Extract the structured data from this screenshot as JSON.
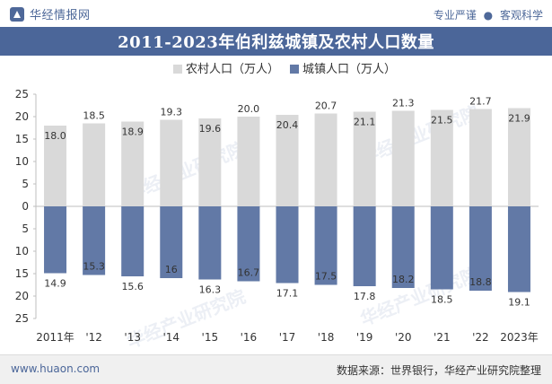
{
  "header": {
    "logo_text": "华经情报网",
    "slogan_left": "专业严谨",
    "slogan_dot": "●",
    "slogan_right": "客观科学"
  },
  "footer": {
    "website": "www.huaon.com",
    "source": "数据来源：世界银行，华经产业研究院整理"
  },
  "watermark": "华经产业研究院",
  "colors": {
    "rural": "#d9d9d9",
    "urban": "#6279a6",
    "title_bg": "#4b6699",
    "brand": "#4e6899"
  },
  "chart_data": {
    "type": "bar",
    "title": "2011-2023年伯利兹城镇及农村人口数量",
    "categories": [
      "2011年",
      "'12",
      "'13",
      "'14",
      "'15",
      "'16",
      "'17",
      "'18",
      "'19",
      "'20",
      "'21",
      "'22",
      "2023年"
    ],
    "series": [
      {
        "name": "农村人口（万人）",
        "direction": "up",
        "values": [
          18.0,
          18.5,
          18.9,
          19.3,
          19.6,
          20.0,
          20.4,
          20.7,
          21.1,
          21.3,
          21.5,
          21.7,
          21.9
        ],
        "labels": [
          "18.0",
          "18.5",
          "18.9",
          "19.3",
          "19.6",
          "20.0",
          "20.4",
          "20.7",
          "21.1",
          "21.3",
          "21.5",
          "21.7",
          "21.9"
        ]
      },
      {
        "name": "城镇人口（万人）",
        "direction": "down",
        "values": [
          14.9,
          15.3,
          15.6,
          16.0,
          16.3,
          16.7,
          17.1,
          17.5,
          17.8,
          18.2,
          18.5,
          18.8,
          19.1
        ],
        "labels": [
          "14.9",
          "15.3",
          "15.6",
          "16",
          "16.3",
          "16.7",
          "17.1",
          "17.5",
          "17.8",
          "18.2",
          "18.5",
          "18.8",
          "19.1"
        ]
      }
    ],
    "y_ticks": [
      "25",
      "20",
      "15",
      "10",
      "5",
      "0",
      "5",
      "10",
      "15",
      "20",
      "25"
    ],
    "ylim": [
      -25,
      25
    ],
    "grid": false,
    "legend_position": "top-center"
  }
}
